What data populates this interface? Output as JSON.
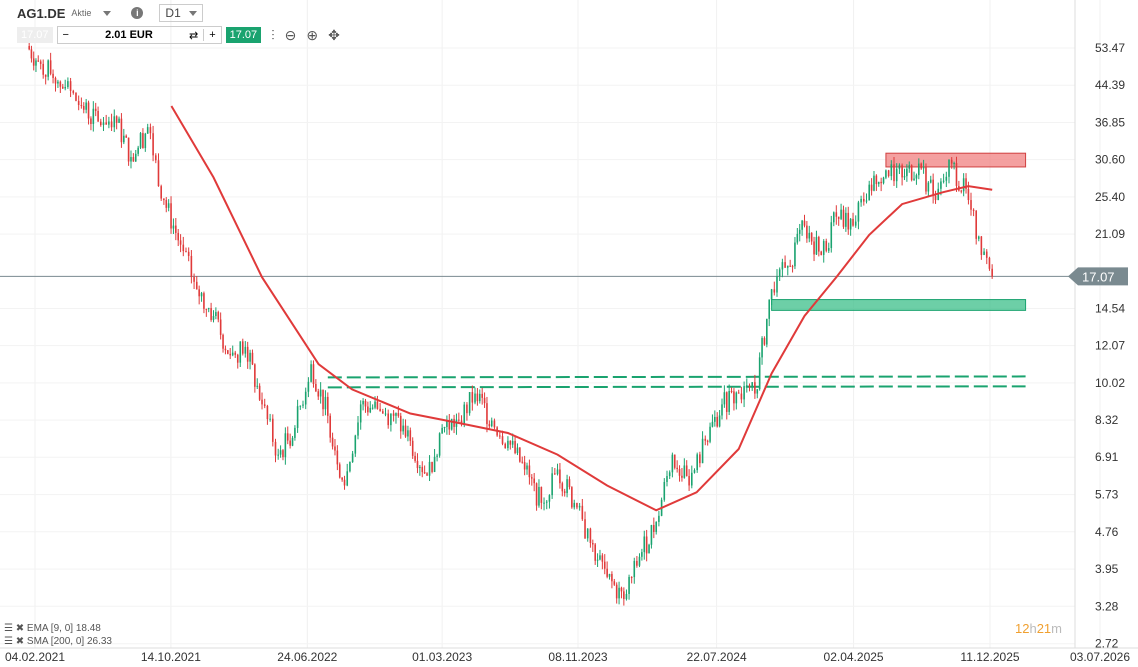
{
  "header": {
    "symbol": "AG1.DE",
    "type": "Aktie",
    "timeframe": "D1",
    "sell_price": "17.07",
    "quantity": "2.01 EUR",
    "buy_price": "17.07"
  },
  "indicators": [
    {
      "label": "EMA [9, 0] 18.48"
    },
    {
      "label": "SMA [200, 0] 26.33"
    }
  ],
  "timer": {
    "h": "12",
    "hl": "h",
    "m": "21",
    "ml": "m"
  },
  "colors": {
    "up": "#1aa36f",
    "down": "#e03a3a",
    "sma": "#e03a3a",
    "resistance": "#f08080",
    "support": "#3cbf8a"
  },
  "chart_data": {
    "type": "candlestick",
    "yscale": "log",
    "ylim": [
      2.72,
      56
    ],
    "yticks": [
      "53.47",
      "44.39",
      "36.85",
      "30.60",
      "25.40",
      "21.09",
      "17.07",
      "14.54",
      "12.07",
      "10.02",
      "8.32",
      "6.91",
      "5.73",
      "4.76",
      "3.95",
      "3.28",
      "2.72"
    ],
    "xticks": [
      "04.02.2021",
      "14.10.2021",
      "24.06.2022",
      "01.03.2023",
      "08.11.2023",
      "22.07.2024",
      "02.04.2025",
      "11.12.2025",
      "03.07.2026"
    ],
    "current_price": "17.07",
    "close": [
      [
        "2021-01-20",
        54
      ],
      [
        "2021-02-10",
        50
      ],
      [
        "2021-03-05",
        47
      ],
      [
        "2021-04-01",
        44
      ],
      [
        "2021-05-01",
        40
      ],
      [
        "2021-06-01",
        37
      ],
      [
        "2021-07-01",
        38
      ],
      [
        "2021-08-01",
        31
      ],
      [
        "2021-09-01",
        36
      ],
      [
        "2021-10-01",
        25
      ],
      [
        "2021-11-01",
        20
      ],
      [
        "2021-12-01",
        16
      ],
      [
        "2022-01-01",
        14
      ],
      [
        "2022-02-01",
        11.5
      ],
      [
        "2022-03-01",
        12
      ],
      [
        "2022-04-01",
        9
      ],
      [
        "2022-05-01",
        7
      ],
      [
        "2022-06-01",
        8
      ],
      [
        "2022-07-01",
        11
      ],
      [
        "2022-08-01",
        8.5
      ],
      [
        "2022-09-01",
        6
      ],
      [
        "2022-10-01",
        9
      ],
      [
        "2022-11-01",
        8.8
      ],
      [
        "2022-12-01",
        8.5
      ],
      [
        "2023-01-01",
        7.5
      ],
      [
        "2023-02-01",
        6.3
      ],
      [
        "2023-03-01",
        8
      ],
      [
        "2023-04-01",
        8.3
      ],
      [
        "2023-05-01",
        9.5
      ],
      [
        "2023-06-01",
        8.3
      ],
      [
        "2023-07-01",
        7.5
      ],
      [
        "2023-08-01",
        6.5
      ],
      [
        "2023-09-01",
        5.5
      ],
      [
        "2023-10-01",
        6.5
      ],
      [
        "2023-11-01",
        5.5
      ],
      [
        "2023-12-01",
        4.5
      ],
      [
        "2024-01-01",
        3.8
      ],
      [
        "2024-02-01",
        3.4
      ],
      [
        "2024-03-01",
        4.2
      ],
      [
        "2024-04-01",
        5
      ],
      [
        "2024-05-01",
        7
      ],
      [
        "2024-06-01",
        6
      ],
      [
        "2024-07-01",
        7.5
      ],
      [
        "2024-08-01",
        9
      ],
      [
        "2024-09-01",
        9.5
      ],
      [
        "2024-10-01",
        9.5
      ],
      [
        "2024-11-01",
        16
      ],
      [
        "2024-12-01",
        18
      ],
      [
        "2025-01-01",
        22
      ],
      [
        "2025-02-01",
        19
      ],
      [
        "2025-03-01",
        23
      ],
      [
        "2025-04-01",
        22
      ],
      [
        "2025-05-01",
        27
      ],
      [
        "2025-06-01",
        29
      ],
      [
        "2025-07-01",
        28
      ],
      [
        "2025-08-01",
        30
      ],
      [
        "2025-09-01",
        25
      ],
      [
        "2025-10-01",
        30
      ],
      [
        "2025-11-01",
        25
      ],
      [
        "2025-11-25",
        19
      ],
      [
        "2025-12-15",
        17.07
      ]
    ],
    "sma200": [
      [
        "2021-10-15",
        40
      ],
      [
        "2022-01-01",
        28
      ],
      [
        "2022-04-01",
        17
      ],
      [
        "2022-07-15",
        11
      ],
      [
        "2022-09-15",
        9.7
      ],
      [
        "2023-01-01",
        8.6
      ],
      [
        "2023-04-01",
        8.2
      ],
      [
        "2023-07-01",
        7.8
      ],
      [
        "2023-10-01",
        7.0
      ],
      [
        "2024-01-01",
        6.0
      ],
      [
        "2024-04-01",
        5.3
      ],
      [
        "2024-06-15",
        5.8
      ],
      [
        "2024-09-01",
        7.2
      ],
      [
        "2024-11-01",
        10.5
      ],
      [
        "2025-01-01",
        14
      ],
      [
        "2025-03-01",
        17
      ],
      [
        "2025-05-01",
        21
      ],
      [
        "2025-07-01",
        24.5
      ],
      [
        "2025-09-15",
        26
      ],
      [
        "2025-11-01",
        26.8
      ],
      [
        "2025-12-15",
        26.33
      ]
    ],
    "zones": [
      {
        "kind": "resistance",
        "from": "2025-06-01",
        "to": "2026-02-15",
        "low": 29.5,
        "high": 31.6
      },
      {
        "kind": "support",
        "from": "2024-11-01",
        "to": "2026-02-15",
        "low": 14.4,
        "high": 15.2
      }
    ],
    "dashed_lines": [
      {
        "from": "2022-08-01",
        "to": "2026-02-15",
        "start": 10.3,
        "end": 10.35
      },
      {
        "from": "2022-08-01",
        "to": "2026-02-15",
        "start": 9.8,
        "end": 9.85
      }
    ]
  }
}
